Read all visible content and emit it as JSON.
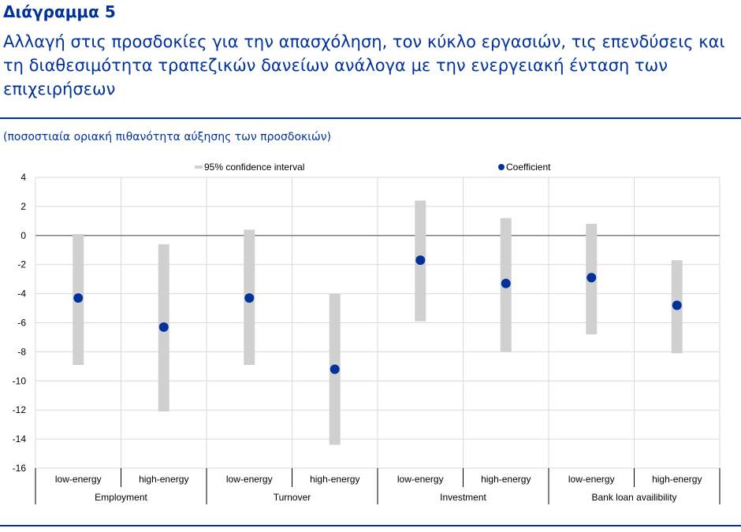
{
  "header": {
    "chart_number": "Διάγραμμα 5",
    "title": "Αλλαγή στις προσδοκίες για την απασχόληση, τον κύκλο εργασιών, τις επενδύσεις και τη διαθεσιμότητα τραπεζικών δανείων ανάλογα με την ενεργειακή ένταση των επιχειρήσεων",
    "unit_note": "(ποσοστιαία οριακή πιθανότητα αύξησης των προσδοκιών)"
  },
  "colors": {
    "accent": "#003299",
    "ci_bar": "#D0D0D0",
    "grid": "#D9D9D9",
    "axis": "#7F7F7F"
  },
  "chart_data": {
    "type": "scatter",
    "ylim": [
      -16,
      4
    ],
    "yticks": [
      4,
      2,
      0,
      -2,
      -4,
      -6,
      -8,
      -10,
      -12,
      -14,
      -16
    ],
    "grid": true,
    "legend_position": "top",
    "legend": {
      "ci": "95% confidence interval",
      "coef": "Coefficient"
    },
    "groups": [
      {
        "name": "Employment",
        "categories": [
          "low-energy",
          "high-energy"
        ]
      },
      {
        "name": "Turnover",
        "categories": [
          "low-energy",
          "high-energy"
        ]
      },
      {
        "name": "Investment",
        "categories": [
          "low-energy",
          "high-energy"
        ]
      },
      {
        "name": "Bank loan availibility",
        "categories": [
          "low-energy",
          "high-energy"
        ]
      }
    ],
    "coefficient": [
      -4.3,
      -6.3,
      -4.3,
      -9.2,
      -1.7,
      -3.3,
      -2.9,
      -4.8
    ],
    "ci_low": [
      -8.9,
      -12.1,
      -8.9,
      -14.4,
      -5.9,
      -8.0,
      -6.8,
      -8.1
    ],
    "ci_high": [
      0.1,
      -0.6,
      0.4,
      -4.0,
      2.4,
      1.2,
      0.8,
      -1.7
    ]
  }
}
